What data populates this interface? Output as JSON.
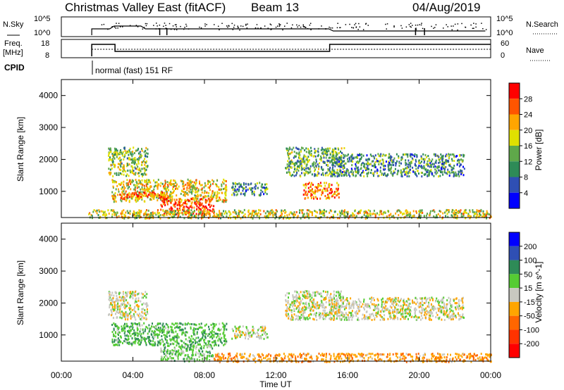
{
  "header": {
    "title": "Christmas Valley East (fitACF)",
    "beam": "Beam 13",
    "date": "04/Aug/2019"
  },
  "top_panels": {
    "nsky_label": "N.Sky",
    "nsky_ticks": [
      "10^5",
      "10^0"
    ],
    "nsearch_label": "N.Search",
    "freq_label_1": "Freq.",
    "freq_label_2": "[MHz]",
    "freq_ticks": [
      "18",
      "8"
    ],
    "nave_ticks": [
      "60",
      "0"
    ],
    "nave_label": "Nave",
    "cpid_label": "CPID",
    "cpid_text": "normal (fast) 151 RF"
  },
  "x_axis": {
    "ticks": [
      "00:00",
      "04:00",
      "08:00",
      "12:00",
      "16:00",
      "20:00",
      "00:00"
    ],
    "label": "Time UT"
  },
  "panels": {
    "power": {
      "ylabel": "Slant Range [km]",
      "yticks": [
        "1000",
        "2000",
        "3000",
        "4000"
      ],
      "colorbar_label": "Power [dB]",
      "colorbar_ticks": [
        "4",
        "8",
        "12",
        "16",
        "20",
        "24",
        "28"
      ],
      "colors": [
        "#0000ff",
        "#2f4fb4",
        "#2e8b57",
        "#5fa84a",
        "#e0e000",
        "#ffa500",
        "#ff5500",
        "#ff0000"
      ]
    },
    "velocity": {
      "ylabel": "Slant Range [km]",
      "yticks": [
        "1000",
        "2000",
        "3000",
        "4000"
      ],
      "colorbar_label": "Velocity [m s^-1]",
      "colorbar_ticks": [
        "200",
        "100",
        "50",
        "15",
        "-15",
        "-50",
        "-100",
        "-200"
      ],
      "colors": [
        "#0000ff",
        "#2f4fb4",
        "#2e8b57",
        "#55cc33",
        "#c8c8c0",
        "#ffa500",
        "#ff6600",
        "#ff3300",
        "#ff0000"
      ]
    }
  },
  "chart_data": [
    {
      "type": "heatmap",
      "title": "Christmas Valley East (fitACF)",
      "variable": "Power [dB]",
      "xlabel": "Time UT",
      "ylabel": "Slant Range [km]",
      "xlim": [
        0,
        24
      ],
      "ylim": [
        180,
        4500
      ],
      "colorbar_range": [
        0,
        30
      ],
      "regions": [
        {
          "t": [
            2.6,
            4.8
          ],
          "r": [
            1500,
            2400
          ],
          "level": 14
        },
        {
          "t": [
            2.8,
            9.2
          ],
          "r": [
            700,
            1400
          ],
          "level": 18
        },
        {
          "t": [
            3.2,
            6.0
          ],
          "r": [
            800,
            1000
          ],
          "level": 24
        },
        {
          "t": [
            5.5,
            8.5
          ],
          "r": [
            300,
            800
          ],
          "level": 26
        },
        {
          "t": [
            9.5,
            11.5
          ],
          "r": [
            900,
            1300
          ],
          "level": 10
        },
        {
          "t": [
            12.5,
            15.8
          ],
          "r": [
            1500,
            2400
          ],
          "level": 12
        },
        {
          "t": [
            13.5,
            15.5
          ],
          "r": [
            800,
            1300
          ],
          "level": 22
        },
        {
          "t": [
            15.0,
            22.5
          ],
          "r": [
            1500,
            2200
          ],
          "level": 10
        },
        {
          "t": [
            1.5,
            24
          ],
          "r": [
            180,
            450
          ],
          "level": 17
        }
      ]
    },
    {
      "type": "heatmap",
      "title": "Christmas Valley East (fitACF)",
      "variable": "Velocity [m s^-1]",
      "xlabel": "Time UT",
      "ylabel": "Slant Range [km]",
      "xlim": [
        0,
        24
      ],
      "ylim": [
        180,
        4500
      ],
      "colorbar_range": [
        -200,
        200
      ],
      "regions": [
        {
          "t": [
            2.6,
            4.8
          ],
          "r": [
            1500,
            2400
          ],
          "value": 0
        },
        {
          "t": [
            2.8,
            9.2
          ],
          "r": [
            700,
            1400
          ],
          "value": 40
        },
        {
          "t": [
            5.5,
            8.5
          ],
          "r": [
            200,
            700
          ],
          "value": 30
        },
        {
          "t": [
            9.5,
            11.5
          ],
          "r": [
            900,
            1300
          ],
          "value": 0
        },
        {
          "t": [
            12.5,
            15.8
          ],
          "r": [
            1500,
            2400
          ],
          "value": 0
        },
        {
          "t": [
            15.0,
            22.5
          ],
          "r": [
            1500,
            2200
          ],
          "value": 0
        },
        {
          "t": [
            8.5,
            24
          ],
          "r": [
            180,
            450
          ],
          "value": -40
        }
      ]
    }
  ]
}
